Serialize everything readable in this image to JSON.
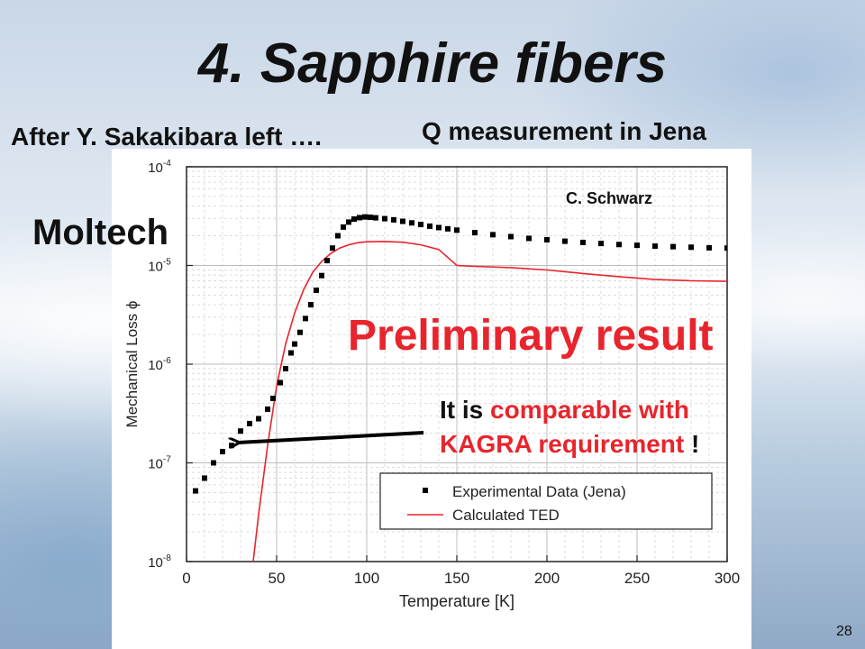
{
  "slide": {
    "title": "4. Sapphire fibers",
    "note_left": "After Y. Sakakibara left ….",
    "note_right": "Q measurement in Jena",
    "org_label": "Moltech",
    "credit": "C. Schwarz",
    "preliminary": "Preliminary result",
    "callout": {
      "part1": "It is",
      "part2": "comparable with",
      "part3": "KAGRA requirement",
      "part4": "!"
    },
    "page_number": "28"
  },
  "colors": {
    "experimental": "#000000",
    "ted": "#e8242c",
    "highlight": "#e8242c"
  },
  "chart_data": {
    "type": "scatter",
    "xlabel": "Temperature [K]",
    "ylabel": "Mechanical Loss ϕ",
    "xlim": [
      0,
      300
    ],
    "ylim": [
      1e-08,
      0.0001
    ],
    "yscale": "log",
    "grid": true,
    "legend_position": "bottom-right",
    "x_ticks": [
      "0",
      "50",
      "100",
      "150",
      "200",
      "250",
      "300"
    ],
    "y_ticks": [
      {
        "base": "10",
        "exp": "-8"
      },
      {
        "base": "10",
        "exp": "-7"
      },
      {
        "base": "10",
        "exp": "-6"
      },
      {
        "base": "10",
        "exp": "-5"
      },
      {
        "base": "10",
        "exp": "-4"
      }
    ],
    "series": [
      {
        "name": "Experimental Data (Jena)",
        "style": "markers",
        "points": [
          [
            5,
            5.2e-08
          ],
          [
            10,
            7e-08
          ],
          [
            15,
            1e-07
          ],
          [
            20,
            1.3e-07
          ],
          [
            25,
            1.5e-07
          ],
          [
            30,
            2.1e-07
          ],
          [
            35,
            2.5e-07
          ],
          [
            40,
            2.8e-07
          ],
          [
            45,
            3.5e-07
          ],
          [
            48,
            4.5e-07
          ],
          [
            52,
            6.5e-07
          ],
          [
            55,
            9e-07
          ],
          [
            58,
            1.3e-06
          ],
          [
            60,
            1.6e-06
          ],
          [
            63,
            2.1e-06
          ],
          [
            66,
            2.9e-06
          ],
          [
            69,
            4e-06
          ],
          [
            72,
            5.6e-06
          ],
          [
            75,
            7.9e-06
          ],
          [
            78,
            1.12e-05
          ],
          [
            81,
            1.5e-05
          ],
          [
            84,
            2e-05
          ],
          [
            87,
            2.45e-05
          ],
          [
            90,
            2.75e-05
          ],
          [
            93,
            2.95e-05
          ],
          [
            96,
            3.05e-05
          ],
          [
            99,
            3.1e-05
          ],
          [
            102,
            3.08e-05
          ],
          [
            105,
            3.04e-05
          ],
          [
            110,
            2.98e-05
          ],
          [
            115,
            2.9e-05
          ],
          [
            120,
            2.8e-05
          ],
          [
            125,
            2.7e-05
          ],
          [
            130,
            2.6e-05
          ],
          [
            135,
            2.5e-05
          ],
          [
            140,
            2.42e-05
          ],
          [
            145,
            2.35e-05
          ],
          [
            150,
            2.28e-05
          ],
          [
            160,
            2.15e-05
          ],
          [
            170,
            2.05e-05
          ],
          [
            180,
            1.96e-05
          ],
          [
            190,
            1.88e-05
          ],
          [
            200,
            1.82e-05
          ],
          [
            210,
            1.76e-05
          ],
          [
            220,
            1.71e-05
          ],
          [
            230,
            1.67e-05
          ],
          [
            240,
            1.63e-05
          ],
          [
            250,
            1.6e-05
          ],
          [
            260,
            1.57e-05
          ],
          [
            270,
            1.55e-05
          ],
          [
            280,
            1.53e-05
          ],
          [
            290,
            1.51e-05
          ],
          [
            300,
            1.5e-05
          ]
        ]
      },
      {
        "name": "Calculated TED",
        "style": "line",
        "points": [
          [
            37,
            1e-08
          ],
          [
            40,
            3e-08
          ],
          [
            45,
            1.5e-07
          ],
          [
            50,
            6e-07
          ],
          [
            55,
            1.6e-06
          ],
          [
            60,
            3.3e-06
          ],
          [
            65,
            5.7e-06
          ],
          [
            70,
            8.5e-06
          ],
          [
            75,
            1.1e-05
          ],
          [
            80,
            1.32e-05
          ],
          [
            85,
            1.5e-05
          ],
          [
            90,
            1.62e-05
          ],
          [
            95,
            1.7e-05
          ],
          [
            100,
            1.74e-05
          ],
          [
            110,
            1.75e-05
          ],
          [
            120,
            1.72e-05
          ],
          [
            130,
            1.62e-05
          ],
          [
            140,
            1.45e-05
          ],
          [
            150,
            1e-05
          ],
          [
            160,
            9.8e-06
          ],
          [
            180,
            9.5e-06
          ],
          [
            200,
            9e-06
          ],
          [
            220,
            8.3e-06
          ],
          [
            240,
            7.7e-06
          ],
          [
            260,
            7.2e-06
          ],
          [
            280,
            7e-06
          ],
          [
            300,
            6.9e-06
          ]
        ]
      }
    ]
  }
}
